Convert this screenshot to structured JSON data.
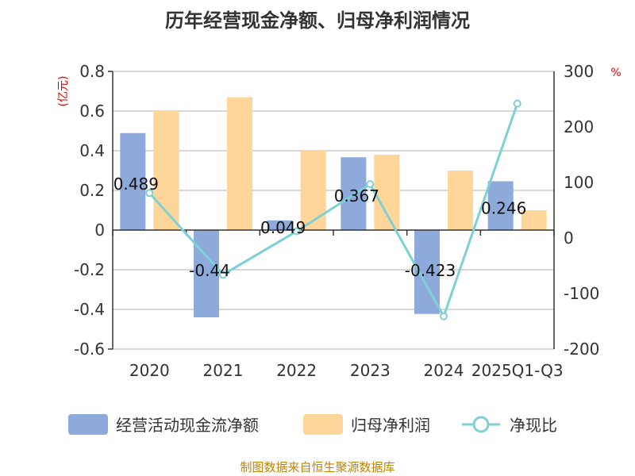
{
  "chart_data": {
    "type": "bar+line",
    "title": "历年经营现金净额、归母净利润情况",
    "categories": [
      "2020",
      "2021",
      "2022",
      "2023",
      "2024",
      "2025Q1-Q3"
    ],
    "series": [
      {
        "name": "经营活动现金流净额",
        "type": "bar",
        "axis": "left",
        "color": "#8eaadb",
        "values": [
          0.489,
          -0.44,
          0.049,
          0.367,
          -0.423,
          0.246
        ],
        "labels": [
          "0.489",
          "-0.44",
          "0.049",
          "0.367",
          "-0.423",
          "0.246"
        ]
      },
      {
        "name": "归母净利润",
        "type": "bar",
        "axis": "left",
        "color": "#ffd699",
        "values": [
          0.6,
          0.67,
          0.4,
          0.38,
          0.3,
          0.1
        ]
      },
      {
        "name": "净现比",
        "type": "line",
        "axis": "right",
        "color": "#7fd0d4",
        "values": [
          81,
          -66,
          12,
          97,
          -141,
          242
        ]
      }
    ],
    "left_axis": {
      "unit": "(亿元)",
      "min": -0.6,
      "max": 0.8,
      "ticks": [
        "0.8",
        "0.6",
        "0.4",
        "0.2",
        "0",
        "-0.2",
        "-0.4",
        "-0.6"
      ]
    },
    "right_axis": {
      "unit": "%",
      "min": -200,
      "max": 300,
      "ticks": [
        "300",
        "200",
        "100",
        "0",
        "-100",
        "-200"
      ]
    },
    "legend": {
      "position": "bottom"
    },
    "source": "制图数据来自恒生聚源数据库"
  }
}
